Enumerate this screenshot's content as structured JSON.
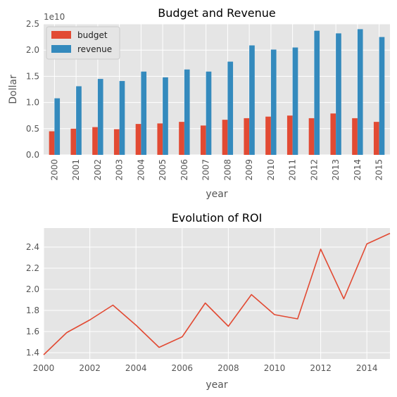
{
  "colors": {
    "budget": "#E24A33",
    "revenue": "#348ABD",
    "roi": "#E24A33",
    "plot_bg": "#E5E5E5",
    "grid": "#FFFFFF"
  },
  "chart_data": [
    {
      "type": "bar",
      "title": "Budget and Revenue",
      "xlabel": "year",
      "ylabel": "Dollar",
      "y_offset_label": "1e10",
      "ylim": [
        0,
        2.5
      ],
      "yticks": [
        "0.0",
        "0.5",
        "1.0",
        "1.5",
        "2.0",
        "2.5"
      ],
      "categories": [
        "2000",
        "2001",
        "2002",
        "2003",
        "2004",
        "2005",
        "2006",
        "2007",
        "2008",
        "2009",
        "2010",
        "2011",
        "2012",
        "2013",
        "2014",
        "2015"
      ],
      "series": [
        {
          "name": "budget",
          "values": [
            0.45,
            0.5,
            0.53,
            0.49,
            0.59,
            0.6,
            0.63,
            0.56,
            0.67,
            0.7,
            0.73,
            0.75,
            0.7,
            0.79,
            0.7,
            0.63
          ]
        },
        {
          "name": "revenue",
          "values": [
            1.08,
            1.31,
            1.45,
            1.41,
            1.59,
            1.48,
            1.63,
            1.59,
            1.78,
            2.09,
            2.01,
            2.05,
            2.37,
            2.32,
            2.4,
            2.25
          ]
        }
      ],
      "legend_position": "top-left",
      "grid": true
    },
    {
      "type": "line",
      "title": "Evolution of ROI",
      "xlabel": "year",
      "ylabel": "",
      "xlim": [
        2000,
        2015
      ],
      "ylim": [
        1.34,
        2.58
      ],
      "xticks": [
        "2000",
        "2002",
        "2004",
        "2006",
        "2008",
        "2010",
        "2012",
        "2014"
      ],
      "yticks": [
        "1.4",
        "1.6",
        "1.8",
        "2.0",
        "2.2",
        "2.4"
      ],
      "x": [
        2000,
        2001,
        2002,
        2003,
        2004,
        2005,
        2006,
        2007,
        2008,
        2009,
        2010,
        2011,
        2012,
        2013,
        2014,
        2015
      ],
      "series": [
        {
          "values": [
            1.38,
            1.59,
            1.71,
            1.85,
            1.66,
            1.45,
            1.55,
            1.87,
            1.65,
            1.95,
            1.76,
            1.72,
            2.38,
            1.91,
            2.43,
            2.53
          ]
        }
      ],
      "grid": true
    }
  ]
}
